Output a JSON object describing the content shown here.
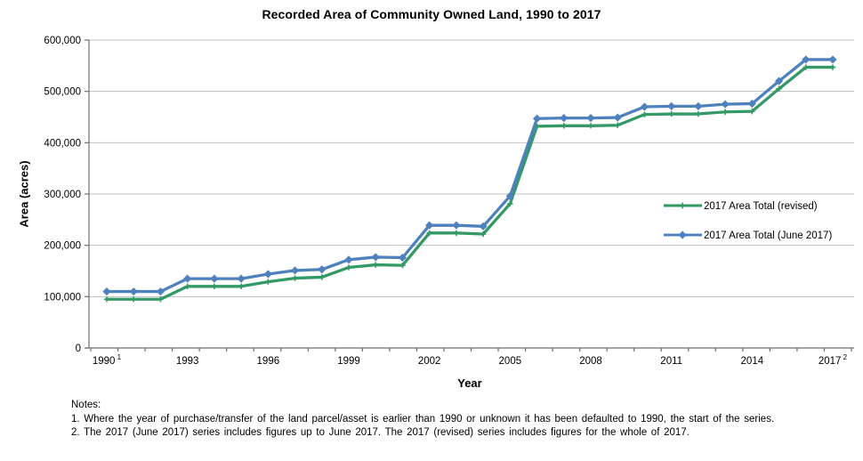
{
  "chart_data": {
    "type": "line",
    "title": "Recorded Area of Community Owned Land, 1990 to 2017",
    "xlabel": "Year",
    "ylabel": "Area (acres)",
    "x": [
      1990,
      1991,
      1992,
      1993,
      1994,
      1995,
      1996,
      1997,
      1998,
      1999,
      2000,
      2001,
      2002,
      2003,
      2004,
      2005,
      2006,
      2007,
      2008,
      2009,
      2010,
      2011,
      2012,
      2013,
      2014,
      2015,
      2016,
      2017
    ],
    "xticks": [
      {
        "index": 0,
        "label": "1990",
        "sup": "1"
      },
      {
        "index": 3,
        "label": "1993"
      },
      {
        "index": 6,
        "label": "1996"
      },
      {
        "index": 9,
        "label": "1999"
      },
      {
        "index": 12,
        "label": "2002"
      },
      {
        "index": 15,
        "label": "2005"
      },
      {
        "index": 18,
        "label": "2008"
      },
      {
        "index": 21,
        "label": "2011"
      },
      {
        "index": 24,
        "label": "2014"
      },
      {
        "index": 27,
        "label": "2017",
        "sup": "2"
      }
    ],
    "yticks": [
      "0",
      "100,000",
      "200,000",
      "300,000",
      "400,000",
      "500,000",
      "600,000"
    ],
    "ylim": [
      0,
      600000
    ],
    "grid": "horizontal",
    "grid_color": "#C0C0C0",
    "axis_color": "#6E6E6E",
    "legend_position": "middle-right",
    "series": [
      {
        "name": "2017 Area Total (revised)",
        "color": "#339966",
        "marker": "plus",
        "values": [
          95000,
          95000,
          95000,
          120000,
          120000,
          120000,
          129000,
          136000,
          138000,
          157000,
          162000,
          161000,
          224000,
          224000,
          222000,
          281000,
          432000,
          433000,
          433000,
          434000,
          455000,
          456000,
          456000,
          460000,
          461000,
          505000,
          547000,
          547000
        ]
      },
      {
        "name": "2017 Area Total (June 2017)",
        "color": "#4F81BD",
        "marker": "diamond",
        "values": [
          110000,
          110000,
          110000,
          135000,
          135000,
          135000,
          144000,
          151000,
          153000,
          172000,
          177000,
          176000,
          239000,
          239000,
          237000,
          296000,
          447000,
          448000,
          448000,
          449000,
          470000,
          471000,
          471000,
          475000,
          476000,
          520000,
          562000,
          562000
        ]
      }
    ]
  },
  "notes": {
    "heading": "Notes:",
    "items": [
      "1. Where the year of purchase/transfer of the land parcel/asset is earlier than 1990 or unknown it has been defaulted to 1990, the start of the series.",
      "2. The 2017 (June 2017) series includes figures up to June 2017. The 2017 (revised)  series includes figures for the whole of 2017."
    ]
  }
}
